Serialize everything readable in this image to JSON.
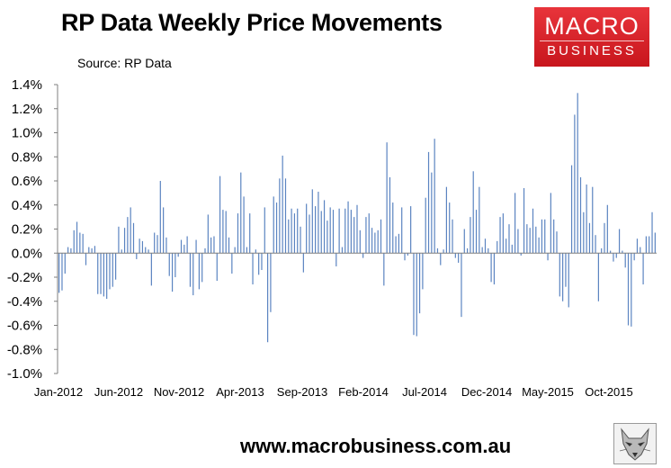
{
  "title": "RP Data Weekly Price Movements",
  "subtitle": "Source: RP Data",
  "logo": {
    "line1": "MACRO",
    "line2": "BUSINESS",
    "icon": "wolf-logo-icon"
  },
  "footer": "www.macrobusiness.com.au",
  "colors": {
    "bar": "#5b84c1",
    "axis": "#7f7f7f",
    "logo_red": "#d9232b"
  },
  "chart_data": {
    "type": "bar",
    "title": "RP Data Weekly Price Movements",
    "ylim": [
      -1.0,
      1.4
    ],
    "yticks": [
      -1.0,
      -0.8,
      -0.6,
      -0.4,
      -0.2,
      0.0,
      0.2,
      0.4,
      0.6,
      0.8,
      1.0,
      1.2,
      1.4
    ],
    "ytick_labels": [
      "-1.0%",
      "-0.8%",
      "-0.6%",
      "-0.4%",
      "-0.2%",
      "0.0%",
      "0.2%",
      "0.4%",
      "0.6%",
      "0.8%",
      "1.0%",
      "1.2%",
      "1.4%"
    ],
    "xtick_labels": [
      "Jan-2012",
      "Jun-2012",
      "Nov-2012",
      "Apr-2013",
      "Sep-2013",
      "Feb-2014",
      "Jul-2014",
      "Dec-2014",
      "May-2015",
      "Oct-2015"
    ],
    "grid": false,
    "legend": "none",
    "values": [
      -0.33,
      -0.31,
      -0.17,
      0.05,
      0.04,
      0.19,
      0.26,
      0.17,
      0.16,
      -0.1,
      0.05,
      0.04,
      0.06,
      -0.34,
      -0.34,
      -0.36,
      -0.38,
      -0.3,
      -0.28,
      -0.22,
      0.22,
      0.03,
      0.21,
      0.3,
      0.38,
      0.25,
      -0.05,
      0.12,
      0.1,
      0.05,
      0.03,
      -0.27,
      0.17,
      0.15,
      0.6,
      0.38,
      0.13,
      -0.19,
      -0.32,
      -0.2,
      -0.03,
      0.11,
      0.07,
      0.14,
      -0.28,
      -0.35,
      0.11,
      -0.3,
      -0.24,
      0.04,
      0.32,
      0.13,
      0.14,
      -0.23,
      0.64,
      0.36,
      0.35,
      0.13,
      -0.17,
      0.05,
      0.33,
      0.67,
      0.47,
      0.05,
      0.33,
      -0.26,
      0.03,
      -0.18,
      -0.14,
      0.38,
      -0.74,
      -0.49,
      0.47,
      0.42,
      0.62,
      0.81,
      0.62,
      0.28,
      0.37,
      0.33,
      0.37,
      0.22,
      -0.16,
      0.41,
      0.32,
      0.53,
      0.39,
      0.51,
      0.35,
      0.44,
      0.27,
      0.38,
      0.36,
      -0.11,
      0.37,
      0.05,
      0.37,
      0.43,
      0.36,
      0.3,
      0.4,
      0.19,
      -0.04,
      0.3,
      0.33,
      0.21,
      0.17,
      0.19,
      0.28,
      -0.27,
      0.92,
      0.63,
      0.42,
      0.14,
      0.16,
      0.38,
      -0.06,
      -0.02,
      0.39,
      -0.68,
      -0.69,
      -0.5,
      -0.3,
      0.46,
      0.84,
      0.67,
      0.95,
      0.04,
      -0.1,
      0.03,
      0.55,
      0.42,
      0.28,
      -0.04,
      -0.08,
      -0.53,
      0.2,
      0.04,
      0.3,
      0.68,
      0.36,
      0.55,
      0.05,
      0.12,
      0.04,
      -0.24,
      -0.26,
      0.1,
      0.3,
      0.33,
      0.12,
      0.24,
      0.07,
      0.5,
      0.2,
      -0.02,
      0.54,
      0.24,
      0.21,
      0.37,
      0.22,
      0.13,
      0.28,
      0.28,
      -0.06,
      0.5,
      0.28,
      0.18,
      -0.36,
      -0.4,
      -0.28,
      -0.45,
      0.73,
      1.15,
      1.33,
      0.63,
      0.34,
      0.57,
      0.25,
      0.55,
      0.15,
      -0.4,
      0.04,
      0.25,
      0.4,
      0.02,
      -0.07,
      -0.04,
      0.2,
      0.02,
      -0.12,
      -0.6,
      -0.61,
      -0.06,
      0.12,
      0.05,
      -0.26,
      0.14,
      0.14,
      0.34,
      0.17
    ]
  }
}
